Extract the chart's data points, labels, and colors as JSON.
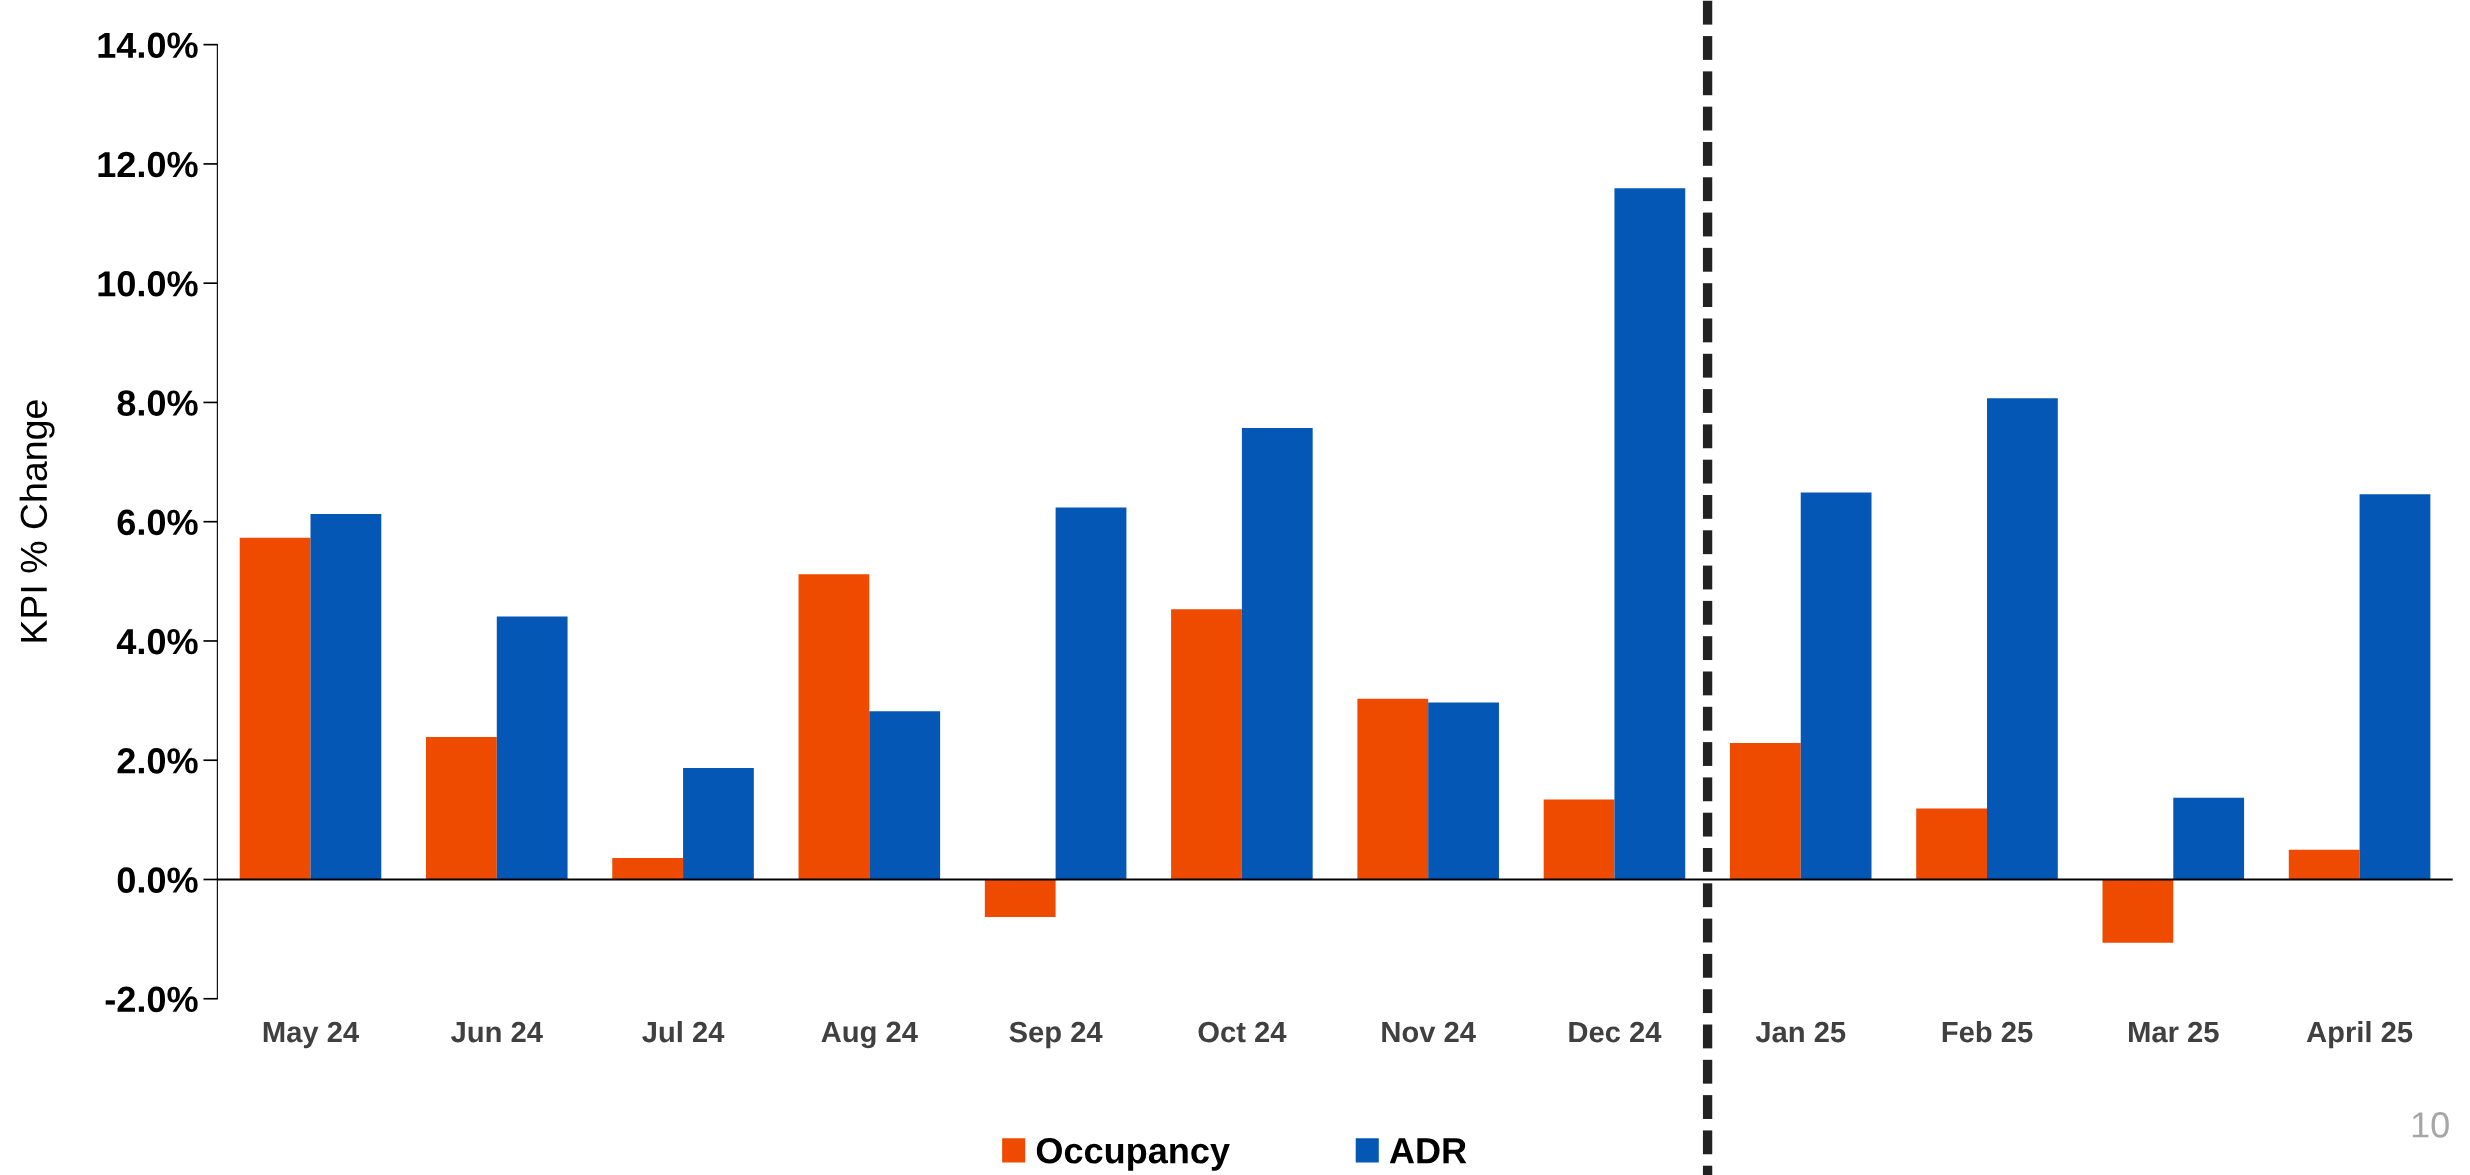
{
  "chart_data": {
    "type": "bar",
    "ylabel": "KPI % Change",
    "categories": [
      "May 24",
      "Jun 24",
      "Jul 24",
      "Aug 24",
      "Sep 24",
      "Oct 24",
      "Nov 24",
      "Dec 24",
      "Jan 25",
      "Feb 25",
      "Mar 25",
      "April 25"
    ],
    "series": [
      {
        "name": "Occupancy",
        "color": "#ee4b00",
        "values": [
          5.73,
          2.39,
          0.36,
          5.12,
          -0.63,
          4.53,
          3.03,
          1.34,
          2.29,
          1.19,
          -1.06,
          0.5
        ]
      },
      {
        "name": "ADR",
        "color": "#0557b5",
        "values": [
          6.13,
          4.41,
          1.87,
          2.82,
          6.24,
          7.57,
          2.97,
          11.59,
          6.49,
          8.07,
          1.37,
          6.46
        ]
      }
    ],
    "ylim": [
      -2,
      14
    ],
    "yticks": [
      {
        "value": -2,
        "label": "-2.0%"
      },
      {
        "value": 0,
        "label": "0.0%"
      },
      {
        "value": 2,
        "label": "2.0%"
      },
      {
        "value": 4,
        "label": "4.0%"
      },
      {
        "value": 6,
        "label": "6.0%"
      },
      {
        "value": 8,
        "label": "8.0%"
      },
      {
        "value": 10,
        "label": "10.0%"
      },
      {
        "value": 12,
        "label": "12.0%"
      },
      {
        "value": 14,
        "label": "14.0%"
      }
    ],
    "ref_lines": [
      {
        "axis": "y",
        "value": 0,
        "color": "#000000",
        "line_style": "solid"
      }
    ],
    "annotations": [
      "10"
    ],
    "legend": "bottom",
    "grid": false
  }
}
